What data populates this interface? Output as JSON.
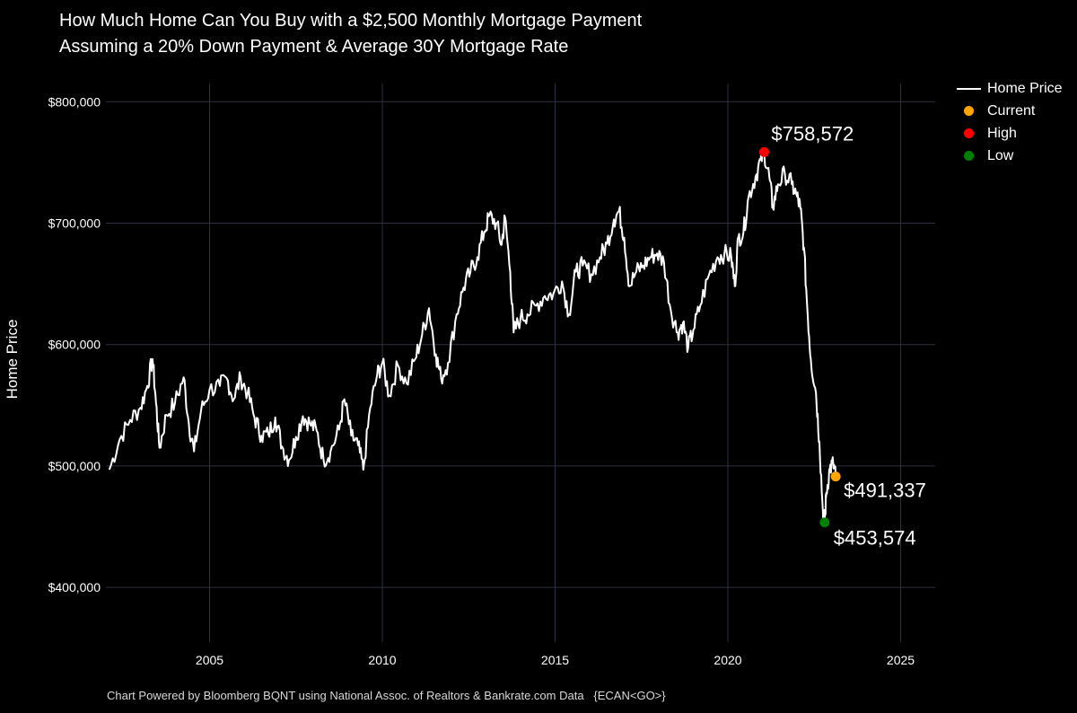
{
  "chart_data": {
    "type": "line",
    "title": "How Much Home Can You Buy with a $2,500 Monthly Mortgage Payment",
    "subtitle": "Assuming a 20% Down Payment & Average 30Y Mortgage Rate",
    "xlabel": "",
    "ylabel": "Home Price",
    "xlim": [
      2002.0,
      2026.0
    ],
    "ylim": [
      355000,
      815000
    ],
    "x_ticks": [
      2005,
      2010,
      2015,
      2020,
      2025
    ],
    "x_tick_labels": [
      "2005",
      "2010",
      "2015",
      "2020",
      "2025"
    ],
    "y_ticks": [
      400000,
      500000,
      600000,
      700000,
      800000
    ],
    "y_tick_labels": [
      "$400,000",
      "$500,000",
      "$600,000",
      "$700,000",
      "$800,000"
    ],
    "grid": true,
    "legend_position": "top-right",
    "series": [
      {
        "name": "Home Price",
        "color": "#ffffff",
        "points": [
          [
            2002.1,
            497000
          ],
          [
            2002.4,
            522000
          ],
          [
            2002.7,
            538000
          ],
          [
            2003.0,
            548000
          ],
          [
            2003.2,
            566000
          ],
          [
            2003.35,
            588000
          ],
          [
            2003.45,
            552000
          ],
          [
            2003.55,
            515000
          ],
          [
            2003.75,
            542000
          ],
          [
            2004.0,
            552000
          ],
          [
            2004.25,
            573000
          ],
          [
            2004.4,
            535000
          ],
          [
            2004.55,
            512000
          ],
          [
            2004.75,
            545000
          ],
          [
            2005.0,
            563000
          ],
          [
            2005.3,
            566000
          ],
          [
            2005.5,
            572000
          ],
          [
            2005.7,
            555000
          ],
          [
            2005.9,
            573000
          ],
          [
            2006.1,
            560000
          ],
          [
            2006.3,
            540000
          ],
          [
            2006.5,
            525000
          ],
          [
            2006.7,
            526000
          ],
          [
            2006.9,
            540000
          ],
          [
            2007.1,
            516000
          ],
          [
            2007.3,
            505000
          ],
          [
            2007.5,
            524000
          ],
          [
            2007.7,
            541000
          ],
          [
            2007.9,
            535000
          ],
          [
            2008.1,
            529000
          ],
          [
            2008.3,
            505000
          ],
          [
            2008.5,
            512000
          ],
          [
            2008.75,
            530000
          ],
          [
            2008.9,
            555000
          ],
          [
            2009.1,
            525000
          ],
          [
            2009.3,
            517000
          ],
          [
            2009.45,
            497000
          ],
          [
            2009.65,
            548000
          ],
          [
            2009.85,
            575000
          ],
          [
            2010.0,
            585000
          ],
          [
            2010.2,
            558000
          ],
          [
            2010.45,
            583000
          ],
          [
            2010.7,
            568000
          ],
          [
            2010.95,
            588000
          ],
          [
            2011.15,
            608000
          ],
          [
            2011.35,
            630000
          ],
          [
            2011.55,
            592000
          ],
          [
            2011.7,
            572000
          ],
          [
            2011.9,
            585000
          ],
          [
            2012.15,
            625000
          ],
          [
            2012.35,
            647000
          ],
          [
            2012.55,
            660000
          ],
          [
            2012.75,
            672000
          ],
          [
            2012.95,
            693000
          ],
          [
            2013.1,
            706000
          ],
          [
            2013.3,
            700000
          ],
          [
            2013.45,
            682000
          ],
          [
            2013.55,
            705000
          ],
          [
            2013.7,
            660000
          ],
          [
            2013.8,
            610000
          ],
          [
            2014.0,
            622000
          ],
          [
            2014.2,
            625000
          ],
          [
            2014.45,
            632000
          ],
          [
            2014.7,
            640000
          ],
          [
            2014.95,
            642000
          ],
          [
            2015.2,
            652000
          ],
          [
            2015.4,
            625000
          ],
          [
            2015.6,
            660000
          ],
          [
            2015.8,
            665000
          ],
          [
            2016.05,
            658000
          ],
          [
            2016.3,
            672000
          ],
          [
            2016.5,
            683000
          ],
          [
            2016.7,
            703000
          ],
          [
            2016.85,
            710000
          ],
          [
            2017.0,
            688000
          ],
          [
            2017.15,
            648000
          ],
          [
            2017.35,
            660000
          ],
          [
            2017.55,
            665000
          ],
          [
            2017.75,
            672000
          ],
          [
            2017.95,
            675000
          ],
          [
            2018.15,
            668000
          ],
          [
            2018.35,
            628000
          ],
          [
            2018.55,
            610000
          ],
          [
            2018.7,
            618000
          ],
          [
            2018.85,
            597000
          ],
          [
            2019.0,
            612000
          ],
          [
            2019.2,
            632000
          ],
          [
            2019.45,
            657000
          ],
          [
            2019.7,
            672000
          ],
          [
            2019.9,
            675000
          ],
          [
            2020.1,
            672000
          ],
          [
            2020.2,
            648000
          ],
          [
            2020.3,
            688000
          ],
          [
            2020.45,
            692000
          ],
          [
            2020.6,
            722000
          ],
          [
            2020.8,
            738000
          ],
          [
            2020.95,
            752000
          ],
          [
            2021.05,
            758572
          ],
          [
            2021.2,
            738000
          ],
          [
            2021.3,
            713000
          ],
          [
            2021.45,
            732000
          ],
          [
            2021.65,
            741000
          ],
          [
            2021.85,
            732000
          ],
          [
            2022.0,
            722000
          ],
          [
            2022.1,
            712000
          ],
          [
            2022.2,
            680000
          ],
          [
            2022.3,
            630000
          ],
          [
            2022.4,
            588000
          ],
          [
            2022.55,
            560000
          ],
          [
            2022.65,
            520000
          ],
          [
            2022.75,
            462000
          ],
          [
            2022.8,
            453574
          ],
          [
            2022.85,
            478000
          ],
          [
            2022.95,
            498000
          ],
          [
            2023.05,
            502000
          ],
          [
            2023.12,
            491337
          ]
        ]
      }
    ],
    "markers": [
      {
        "name": "Current",
        "color": "#ffa500",
        "x": 2023.12,
        "y": 491337,
        "label": "$491,337"
      },
      {
        "name": "High",
        "color": "#ff0000",
        "x": 2021.05,
        "y": 758572,
        "label": "$758,572"
      },
      {
        "name": "Low",
        "color": "#008000",
        "x": 2022.8,
        "y": 453574,
        "label": "$453,574"
      }
    ],
    "legend": [
      "Home Price",
      "Current",
      "High",
      "Low"
    ]
  },
  "footer": "Chart Powered by Bloomberg BQNT using National Assoc. of Realtors & Bankrate.com Data   {ECAN<GO>}"
}
